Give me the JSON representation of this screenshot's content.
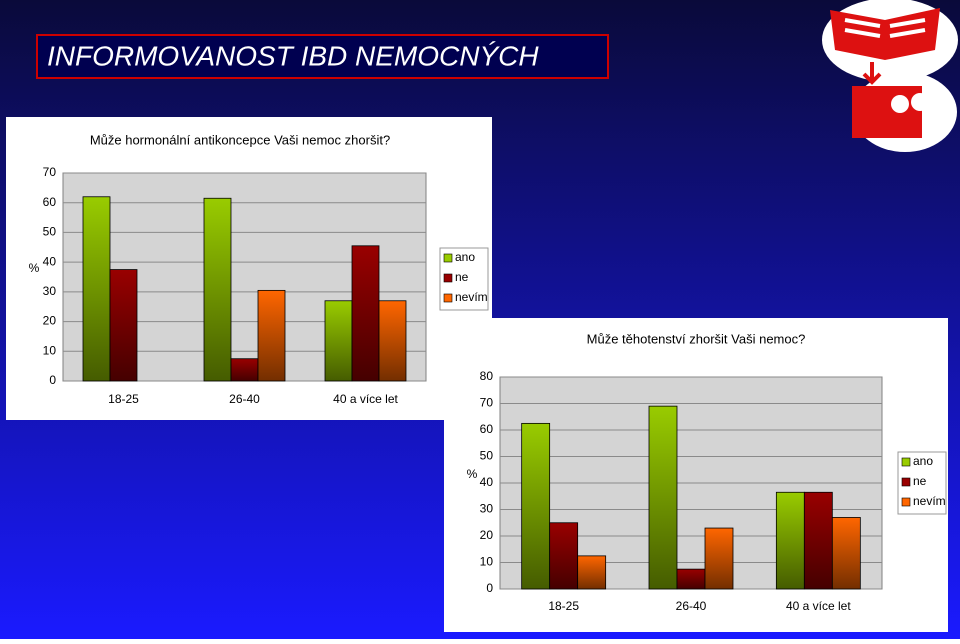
{
  "slide_title": "INFORMOVANOST  IBD  NEMOCNÝCH",
  "chart_data": [
    {
      "type": "bar",
      "title": "Může hormonální antikoncepce Vaši nemoc zhoršit?",
      "y_label": "%",
      "categories": [
        "18-25",
        "26-40",
        "40 a více let"
      ],
      "series": [
        {
          "name": "ano",
          "color": "#99cc00",
          "values": [
            62,
            61.5,
            27
          ]
        },
        {
          "name": "ne",
          "color": "#990000",
          "values": [
            37.5,
            7.5,
            45.5
          ]
        },
        {
          "name": "nevím",
          "color": "#ff6600",
          "values": [
            0,
            30.5,
            27
          ]
        }
      ],
      "ylim": [
        0,
        70
      ],
      "yticks": [
        0,
        10,
        20,
        30,
        40,
        50,
        60,
        70
      ],
      "grid": true,
      "legend": "right"
    },
    {
      "type": "bar",
      "title": "Může těhotenství zhoršit Vaši nemoc?",
      "y_label": "%",
      "categories": [
        "18-25",
        "26-40",
        "40 a více let"
      ],
      "series": [
        {
          "name": "ano",
          "color": "#99cc00",
          "values": [
            62.5,
            69,
            36.5
          ]
        },
        {
          "name": "ne",
          "color": "#990000",
          "values": [
            25,
            7.5,
            36.5
          ]
        },
        {
          "name": "nevím",
          "color": "#ff6600",
          "values": [
            12.5,
            23,
            27
          ]
        }
      ],
      "ylim": [
        0,
        80
      ],
      "yticks": [
        0,
        10,
        20,
        30,
        40,
        50,
        60,
        70,
        80
      ],
      "grid": true,
      "legend": "right"
    }
  ]
}
